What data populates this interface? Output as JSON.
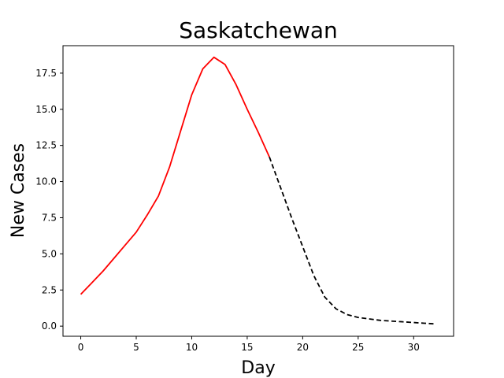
{
  "chart_data": {
    "type": "line",
    "title": "Saskatchewan",
    "xlabel": "Day",
    "ylabel": "New Cases",
    "xlim": [
      -1.6,
      33.6
    ],
    "ylim": [
      -0.7,
      19.4
    ],
    "grid": false,
    "xticks": [
      0,
      5,
      10,
      15,
      20,
      25,
      30
    ],
    "xtick_labels": [
      "0",
      "5",
      "10",
      "15",
      "20",
      "25",
      "30"
    ],
    "yticks": [
      0.0,
      2.5,
      5.0,
      7.5,
      10.0,
      12.5,
      15.0,
      17.5
    ],
    "ytick_labels": [
      "0.0",
      "2.5",
      "5.0",
      "7.5",
      "10.0",
      "12.5",
      "15.0",
      "17.5"
    ],
    "series": [
      {
        "style": "solid",
        "color": "#ff0000",
        "x": [
          0,
          1,
          2,
          3,
          4,
          5,
          6,
          7,
          8,
          9,
          10,
          11,
          12,
          13,
          14,
          15,
          16,
          17
        ],
        "y": [
          2.2,
          3.0,
          3.8,
          4.7,
          5.6,
          6.5,
          7.7,
          9.0,
          11.0,
          13.5,
          16.0,
          17.8,
          18.6,
          18.1,
          16.7,
          15.0,
          13.4,
          11.7
        ]
      },
      {
        "style": "dashed",
        "color": "#000000",
        "x": [
          17,
          18,
          19,
          20,
          21,
          22,
          23,
          24,
          25,
          26,
          27,
          28,
          29,
          30,
          31,
          32
        ],
        "y": [
          11.7,
          9.6,
          7.5,
          5.5,
          3.5,
          2.0,
          1.2,
          0.8,
          0.6,
          0.5,
          0.4,
          0.35,
          0.3,
          0.25,
          0.2,
          0.15
        ]
      }
    ]
  }
}
